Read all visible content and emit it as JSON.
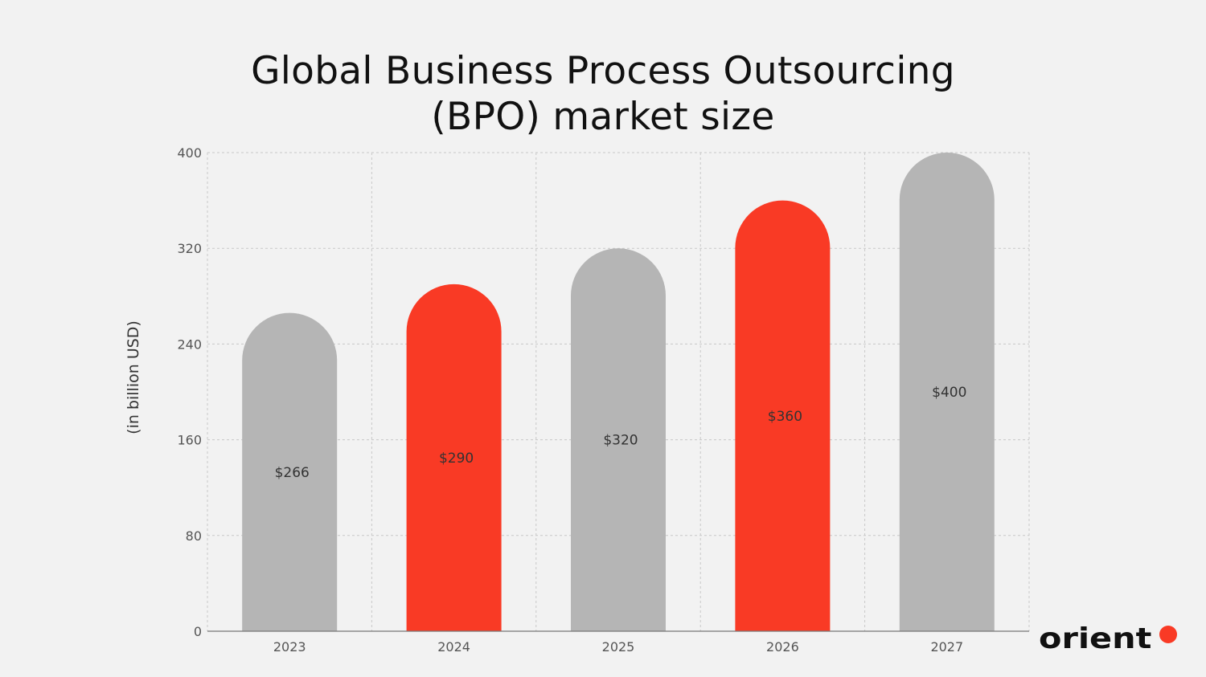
{
  "chart_data": {
    "type": "bar",
    "title": "Global Business Process Outsourcing (BPO) market size",
    "title_lines": [
      "Global Business Process Outsourcing",
      "(BPO) market size"
    ],
    "xlabel": "",
    "ylabel": "(in billion USD)",
    "categories": [
      "2023",
      "2024",
      "2025",
      "2026",
      "2027"
    ],
    "values": [
      266,
      290,
      320,
      360,
      400
    ],
    "data_labels": [
      "$266",
      "$290",
      "$320",
      "$360",
      "$400"
    ],
    "bar_colors": [
      "#b5b5b5",
      "#f93a25",
      "#b5b5b5",
      "#f93a25",
      "#b5b5b5"
    ],
    "ylim": [
      0,
      400
    ],
    "yticks": [
      0,
      80,
      160,
      240,
      320,
      400
    ],
    "grid": true,
    "bar_shape": "rounded-top"
  },
  "logo": {
    "text": "orient",
    "dot_color": "#f93a25"
  }
}
